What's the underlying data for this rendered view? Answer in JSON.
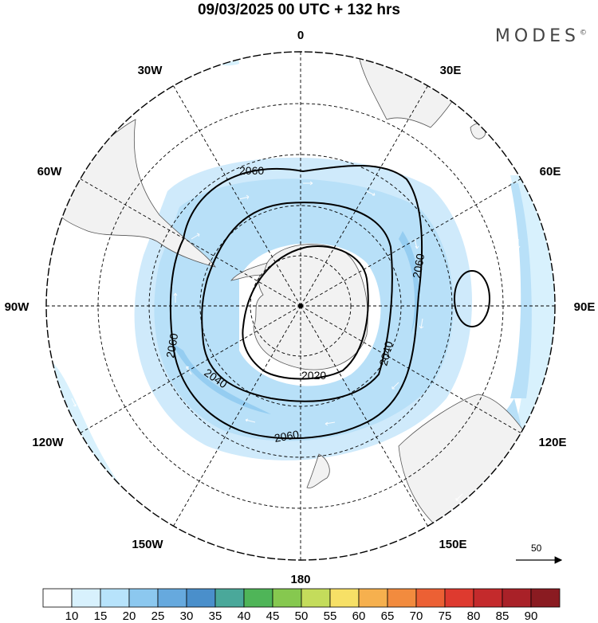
{
  "title": "09/03/2025  00 UTC  + 132 hrs",
  "brand": "MODES",
  "brand_mark": "©",
  "longitude_labels": [
    {
      "text": "0",
      "lon": 0
    },
    {
      "text": "30E",
      "lon": 30
    },
    {
      "text": "60E",
      "lon": 60
    },
    {
      "text": "90E",
      "lon": 90
    },
    {
      "text": "120E",
      "lon": 120
    },
    {
      "text": "150E",
      "lon": 150
    },
    {
      "text": "180",
      "lon": 180
    },
    {
      "text": "150W",
      "lon": -150
    },
    {
      "text": "120W",
      "lon": -120
    },
    {
      "text": "90W",
      "lon": -90
    },
    {
      "text": "60W",
      "lon": -60
    },
    {
      "text": "30W",
      "lon": -30
    }
  ],
  "contour_labels": [
    "2060",
    "2060",
    "2060",
    "2060",
    "2040",
    "2040",
    "2020"
  ],
  "reference_vector": {
    "value": "50"
  },
  "colorbar": {
    "labels": [
      "10",
      "15",
      "20",
      "25",
      "30",
      "35",
      "40",
      "45",
      "50",
      "55",
      "60",
      "65",
      "70",
      "75",
      "80",
      "85",
      "90"
    ],
    "colors": [
      "#ffffff",
      "#d8f1fd",
      "#b7e3fb",
      "#8cc8ef",
      "#66a9de",
      "#4a8fcb",
      "#4aa89a",
      "#4fb558",
      "#86c84f",
      "#c4dc5b",
      "#f7e066",
      "#f6b04e",
      "#f28b3e",
      "#ec6034",
      "#de3a2f",
      "#c42a2c",
      "#a92128",
      "#8a1b21"
    ]
  }
}
